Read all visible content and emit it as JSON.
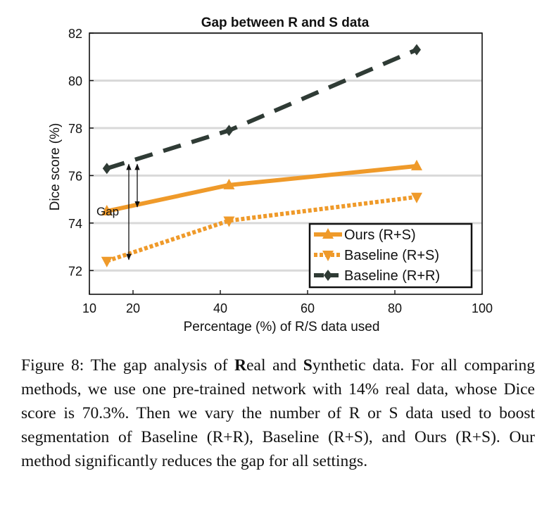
{
  "chart_data": {
    "type": "line",
    "title": "Gap between R and S data",
    "xlabel": "Percentage (%) of R/S data used",
    "ylabel": "Dice score (%)",
    "xlim": [
      10,
      100
    ],
    "ylim": [
      71,
      82
    ],
    "xticks": [
      "10",
      "20",
      "40",
      "60",
      "80",
      "100"
    ],
    "xtick_values": [
      10,
      20,
      40,
      60,
      80,
      100
    ],
    "yticks": [
      "72",
      "74",
      "76",
      "78",
      "80",
      "82"
    ],
    "ytick_values": [
      72,
      74,
      76,
      78,
      80,
      82
    ],
    "grid": "horizontal",
    "legend_position": "bottom-right",
    "series": [
      {
        "name": "Ours (R+S)",
        "x": [
          14,
          42,
          85
        ],
        "y": [
          74.5,
          75.6,
          76.4
        ],
        "color": "#ef9a2a",
        "line": "solid",
        "marker": "triangle-up"
      },
      {
        "name": "Baseline (R+S)",
        "x": [
          14,
          42,
          85
        ],
        "y": [
          72.4,
          74.1,
          75.1
        ],
        "color": "#ef9a2a",
        "line": "dotted",
        "marker": "triangle-down"
      },
      {
        "name": "Baseline (R+R)",
        "x": [
          14,
          42,
          85
        ],
        "y": [
          76.3,
          77.9,
          81.3
        ],
        "color": "#2f3b35",
        "line": "dashed",
        "marker": "diamond"
      }
    ],
    "annotation": {
      "text": "Gap"
    }
  },
  "caption": {
    "prefix": "Figure 8:  The gap analysis of ",
    "bold_r": "R",
    "mid1": "eal and ",
    "bold_s": "S",
    "rest": "ynthetic data. For all comparing methods, we use one pre-trained network with 14% real data, whose Dice score is 70.3%.  Then we vary the number of R or S data used to boost segmentation of Baseline (R+R), Baseline (R+S), and Ours (R+S). Our method significantly reduces the gap for all settings."
  }
}
